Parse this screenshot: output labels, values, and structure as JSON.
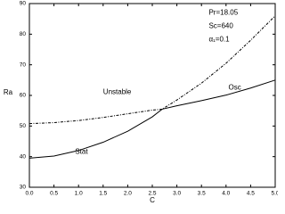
{
  "chart_data": {
    "type": "line",
    "x_label": "C",
    "y_label": "Ra",
    "x": [
      0,
      0.5,
      1.0,
      1.5,
      2.0,
      2.5,
      2.7,
      3.0,
      3.5,
      4.0,
      4.5,
      5.0
    ],
    "series": [
      {
        "color": "#000000",
        "dashed": false,
        "values": [
          39.5,
          40.2,
          42,
          44.7,
          48.3,
          53,
          55.5,
          56.6,
          58.3,
          60.1,
          62.4,
          65
        ]
      },
      {
        "color": "#000000",
        "dashed": true,
        "values": [
          50.8,
          51.1,
          51.8,
          52.8,
          54,
          55.2,
          55.5,
          58.5,
          64,
          70.5,
          78,
          86
        ]
      }
    ],
    "xlim": [
      0,
      5
    ],
    "ylim": [
      30,
      90
    ],
    "xticks": [
      {
        "value": 0,
        "label": "0.0"
      },
      0.5,
      {
        "value": 1,
        "label": "1.0"
      },
      1.5,
      {
        "value": 2,
        "label": "2.0"
      },
      2.5,
      {
        "value": 3,
        "label": "3.0"
      },
      3.5,
      {
        "value": 4,
        "label": "4.0"
      },
      4.5,
      {
        "value": 5,
        "label": "5.0"
      }
    ],
    "yticks": [
      30,
      40,
      50,
      60,
      70,
      80,
      90
    ],
    "annotations": [
      {
        "text": "Pr=18.05",
        "x": 3.65,
        "y": 87
      },
      {
        "text": "Sc=640",
        "x": 3.65,
        "y": 82.6
      },
      {
        "text": "α₁=0.1",
        "x": 3.65,
        "y": 78.2
      },
      {
        "text": "Unstable",
        "x": 1.5,
        "y": 61
      },
      {
        "text": "Osc",
        "x": 4.05,
        "y": 62.5
      },
      {
        "text": "Stat",
        "x": 0.93,
        "y": 41.5
      }
    ]
  }
}
